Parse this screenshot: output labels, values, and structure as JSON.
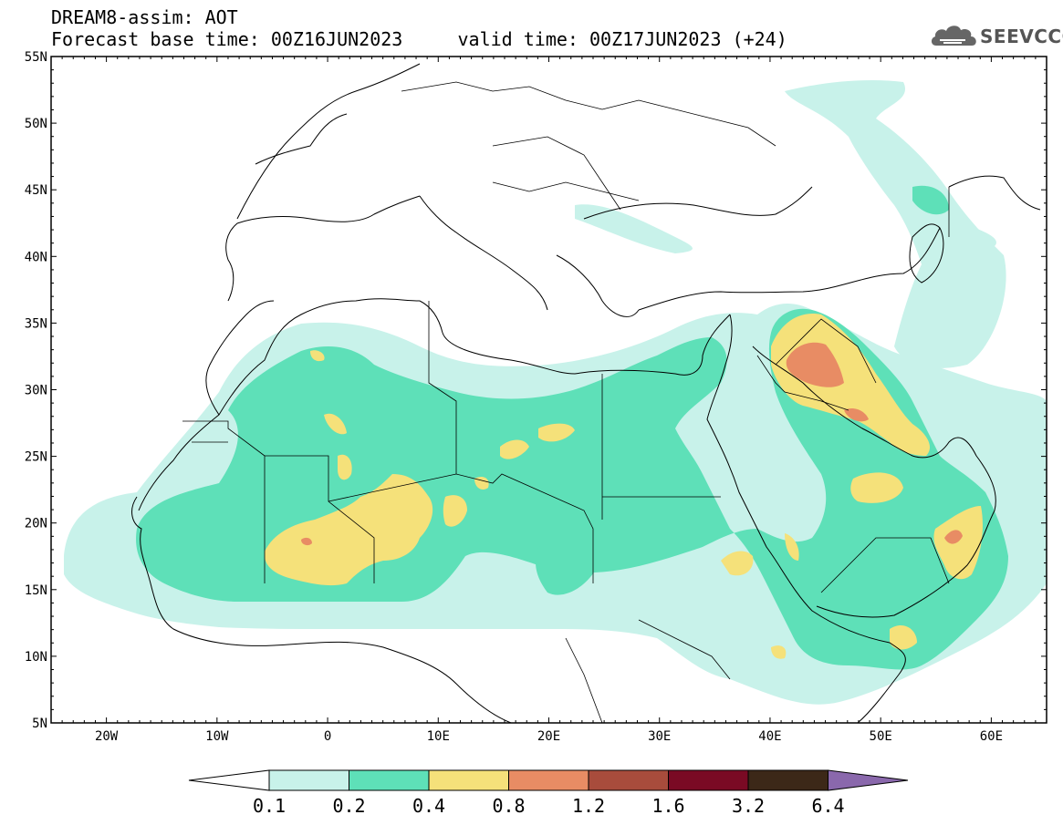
{
  "header": {
    "title_line1": "DREAM8-assim: AOT",
    "title_line2": "Forecast base time: 00Z16JUN2023     valid time: 00Z17JUN2023 (+24)"
  },
  "logo": {
    "text": "SEEVCCC",
    "icon": "cloud-icon"
  },
  "map": {
    "projection": "lat-lon",
    "lon_range": [
      -25,
      65
    ],
    "lat_range": [
      5,
      55
    ],
    "lat_ticks": [
      "5N",
      "10N",
      "15N",
      "20N",
      "25N",
      "30N",
      "35N",
      "40N",
      "45N",
      "50N",
      "55N"
    ],
    "lon_ticks": [
      "20W",
      "10W",
      "0",
      "10E",
      "20E",
      "30E",
      "40E",
      "50E",
      "60E"
    ],
    "lat_tick_values": [
      5,
      10,
      15,
      20,
      25,
      30,
      35,
      40,
      45,
      50,
      55
    ],
    "lon_tick_values": [
      -20,
      -10,
      0,
      10,
      20,
      30,
      40,
      50,
      60
    ]
  },
  "colorbar": {
    "labels": [
      "0.1",
      "0.2",
      "0.4",
      "0.8",
      "1.2",
      "1.6",
      "3.2",
      "6.4"
    ],
    "colors": [
      "#c8f2ea",
      "#5ee0b8",
      "#f5e17a",
      "#e88c64",
      "#a84c3c",
      "#7a0a24",
      "#3c2818",
      "#8a68ac"
    ],
    "below_color": "#ffffff"
  }
}
